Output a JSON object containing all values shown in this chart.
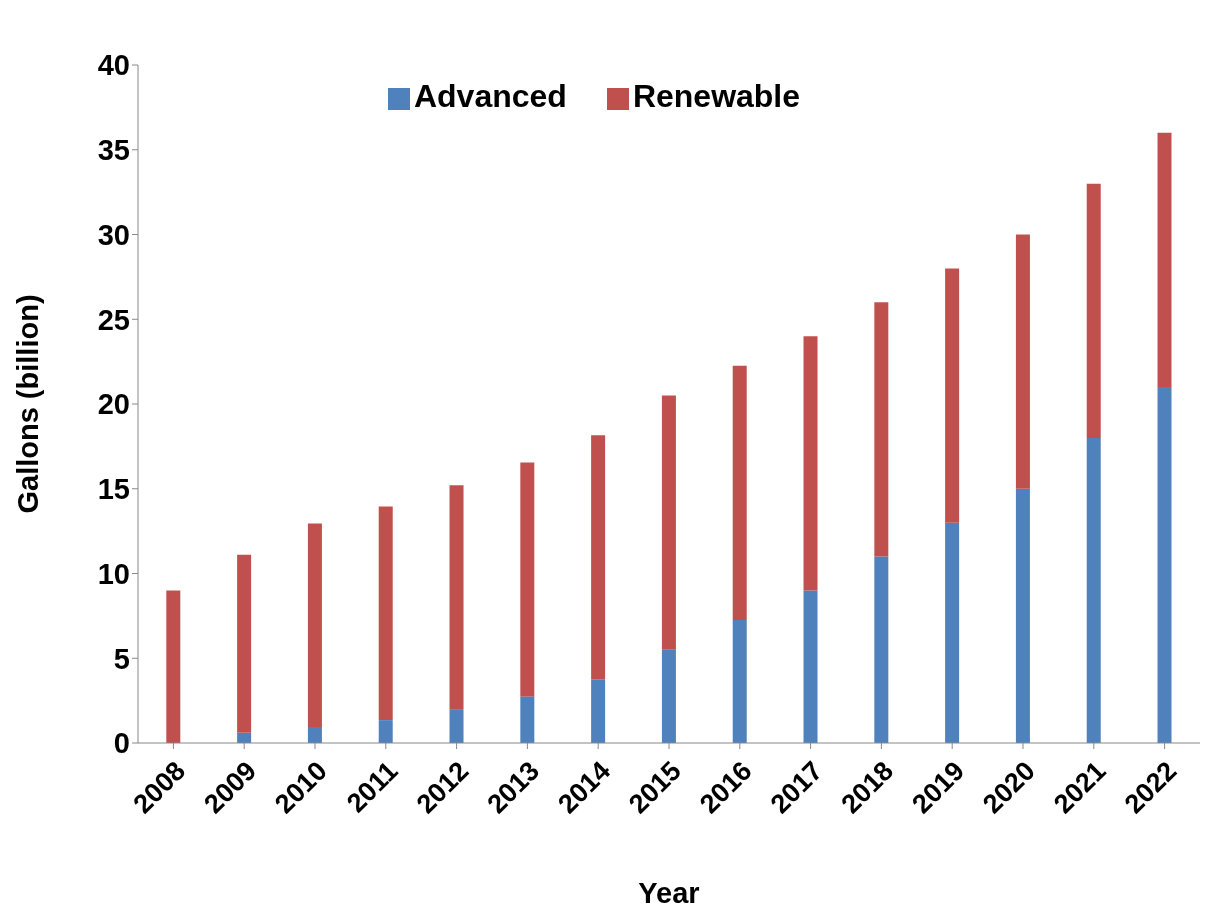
{
  "chart_data": {
    "type": "bar",
    "stacked": true,
    "xlabel": "Year",
    "ylabel": "Gallons (billion)",
    "categories": [
      "2008",
      "2009",
      "2010",
      "2011",
      "2012",
      "2013",
      "2014",
      "2015",
      "2016",
      "2017",
      "2018",
      "2019",
      "2020",
      "2021",
      "2022"
    ],
    "series": [
      {
        "name": "Advanced",
        "color": "#4f81bd",
        "values": [
          0,
          0.6,
          0.95,
          1.35,
          2,
          2.75,
          3.75,
          5.5,
          7.25,
          9,
          11,
          13,
          15,
          18,
          21
        ]
      },
      {
        "name": "Renewable",
        "color": "#c0504d",
        "values": [
          9,
          10.5,
          12,
          12.6,
          13.2,
          13.8,
          14.4,
          15,
          15,
          15,
          15,
          15,
          15,
          15,
          15
        ]
      }
    ],
    "ylim": [
      0,
      40
    ],
    "yticks": [
      0,
      5,
      10,
      15,
      20,
      25,
      30,
      35,
      40
    ],
    "grid": false,
    "legend": "top"
  }
}
